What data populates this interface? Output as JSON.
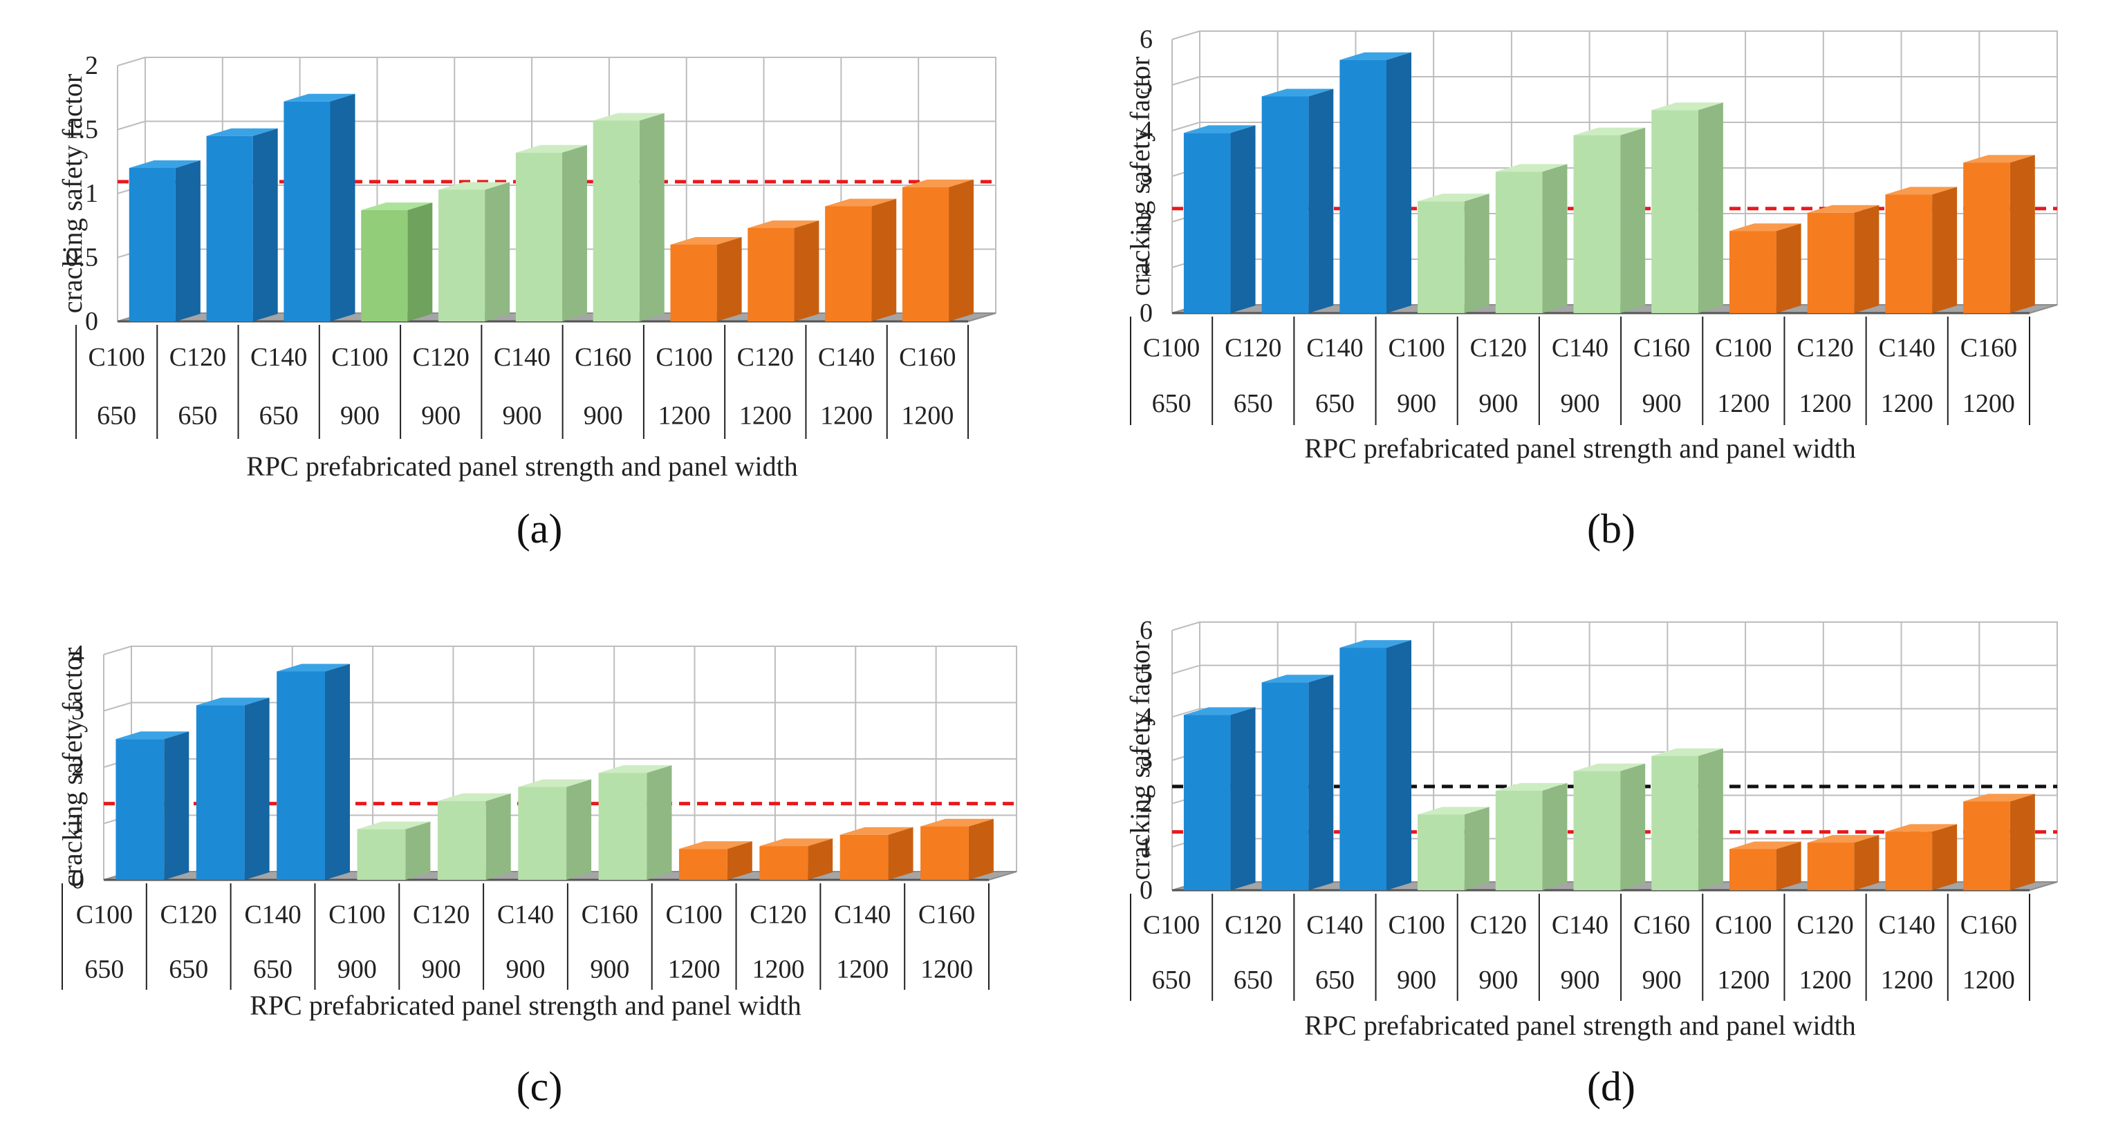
{
  "chart_data": [
    {
      "panel": "(a)",
      "type": "bar",
      "categories": [
        "C100 650",
        "C120 650",
        "C140 650",
        "C100 900",
        "C120 900",
        "C140 900",
        "C160 900",
        "C100 1200",
        "C120 1200",
        "C140 1200",
        "C160 1200"
      ],
      "cat_strength": [
        "C100",
        "C120",
        "C140",
        "C100",
        "C120",
        "C140",
        "C160",
        "C100",
        "C120",
        "C140",
        "C160"
      ],
      "cat_width": [
        "650",
        "650",
        "650",
        "900",
        "900",
        "900",
        "900",
        "1200",
        "1200",
        "1200",
        "1200"
      ],
      "values": [
        1.2,
        1.45,
        1.72,
        0.87,
        1.03,
        1.32,
        1.57,
        0.6,
        0.73,
        0.9,
        1.05
      ],
      "groups": [
        "blue",
        "blue",
        "blue",
        "green_dark",
        "green",
        "green",
        "green",
        "orange",
        "orange",
        "orange",
        "orange"
      ],
      "ylim": [
        0,
        2
      ],
      "yticks": [
        "0",
        "0.5",
        "1",
        "1.5",
        "2"
      ],
      "ylabel": "cracking safety factor",
      "xlabel": "RPC prefabricated panel strength and panel width",
      "reference_lines": [
        {
          "value": 1.06,
          "color": "#e8191c"
        }
      ]
    },
    {
      "panel": "(b)",
      "type": "bar",
      "categories": [
        "C100 650",
        "C120 650",
        "C140 650",
        "C100 900",
        "C120 900",
        "C140 900",
        "C160 900",
        "C100 1200",
        "C120 1200",
        "C140 1200",
        "C160 1200"
      ],
      "cat_strength": [
        "C100",
        "C120",
        "C140",
        "C100",
        "C120",
        "C140",
        "C160",
        "C100",
        "C120",
        "C140",
        "C160"
      ],
      "cat_width": [
        "650",
        "650",
        "650",
        "900",
        "900",
        "900",
        "900",
        "1200",
        "1200",
        "1200",
        "1200"
      ],
      "values": [
        3.95,
        4.75,
        5.55,
        2.45,
        3.1,
        3.9,
        4.45,
        1.8,
        2.2,
        2.6,
        3.3
      ],
      "groups": [
        "blue",
        "blue",
        "blue",
        "green",
        "green",
        "green",
        "green",
        "orange",
        "orange",
        "orange",
        "orange"
      ],
      "ylim": [
        0,
        6
      ],
      "yticks": [
        "0",
        "1",
        "2",
        "3",
        "4",
        "5",
        "6"
      ],
      "ylabel": "cracking safety factor",
      "xlabel": "RPC prefabricated panel strength and panel width",
      "reference_lines": [
        {
          "value": 2.2,
          "color": "#e8191c"
        }
      ]
    },
    {
      "panel": "(c)",
      "type": "bar",
      "categories": [
        "C100 650",
        "C120 650",
        "C140 650",
        "C100 900",
        "C120 900",
        "C140 900",
        "C160 900",
        "C100 1200",
        "C120 1200",
        "C140 1200",
        "C160 1200"
      ],
      "cat_strength": [
        "C100",
        "C120",
        "C140",
        "C100",
        "C120",
        "C140",
        "C160",
        "C100",
        "C120",
        "C140",
        "C160"
      ],
      "cat_width": [
        "650",
        "650",
        "650",
        "900",
        "900",
        "900",
        "900",
        "1200",
        "1200",
        "1200",
        "1200"
      ],
      "values": [
        2.5,
        3.1,
        3.7,
        0.9,
        1.4,
        1.65,
        1.9,
        0.55,
        0.6,
        0.8,
        0.95
      ],
      "groups": [
        "blue",
        "blue",
        "blue",
        "green",
        "green",
        "green",
        "green",
        "orange",
        "orange",
        "orange",
        "orange"
      ],
      "ylim": [
        0,
        4
      ],
      "yticks": [
        "0",
        "1",
        "2",
        "3",
        "4"
      ],
      "ylabel": "cracking safety factor",
      "xlabel": "RPC prefabricated panel strength and panel width",
      "reference_lines": [
        {
          "value": 1.28,
          "color": "#e8191c"
        }
      ]
    },
    {
      "panel": "(d)",
      "type": "bar",
      "categories": [
        "C100 650",
        "C120 650",
        "C140 650",
        "C100 900",
        "C120 900",
        "C140 900",
        "C160 900",
        "C100 1200",
        "C120 1200",
        "C140 1200",
        "C160 1200"
      ],
      "cat_strength": [
        "C100",
        "C120",
        "C140",
        "C100",
        "C120",
        "C140",
        "C160",
        "C100",
        "C120",
        "C140",
        "C160"
      ],
      "cat_width": [
        "650",
        "650",
        "650",
        "900",
        "900",
        "900",
        "900",
        "1200",
        "1200",
        "1200",
        "1200"
      ],
      "values": [
        4.05,
        4.8,
        5.6,
        1.75,
        2.3,
        2.75,
        3.1,
        0.95,
        1.1,
        1.35,
        2.05
      ],
      "groups": [
        "blue",
        "blue",
        "blue",
        "green",
        "green",
        "green",
        "green",
        "orange",
        "orange",
        "orange",
        "orange"
      ],
      "ylim": [
        0,
        6
      ],
      "yticks": [
        "0",
        "1",
        "2",
        "3",
        "4",
        "5",
        "6"
      ],
      "ylabel": "cracking safety factor",
      "xlabel": "RPC prefabricated panel strength and panel width",
      "reference_lines": [
        {
          "value": 2.3,
          "color": "#111111"
        },
        {
          "value": 1.25,
          "color": "#e8191c"
        }
      ]
    }
  ],
  "colors": {
    "blue": {
      "front": "#1d8ad6",
      "side": "#1566a3",
      "top": "#3aa3e6"
    },
    "green": {
      "front": "#b6e0a9",
      "side": "#8fb883",
      "top": "#cdecc2"
    },
    "green_dark": {
      "front": "#92cd7a",
      "side": "#6fa25c",
      "top": "#ace39a"
    },
    "orange": {
      "front": "#f57c1f",
      "side": "#c85f10",
      "top": "#f99a4c"
    },
    "grid": "#bdbdbd",
    "floor": "#8c8c8c"
  }
}
